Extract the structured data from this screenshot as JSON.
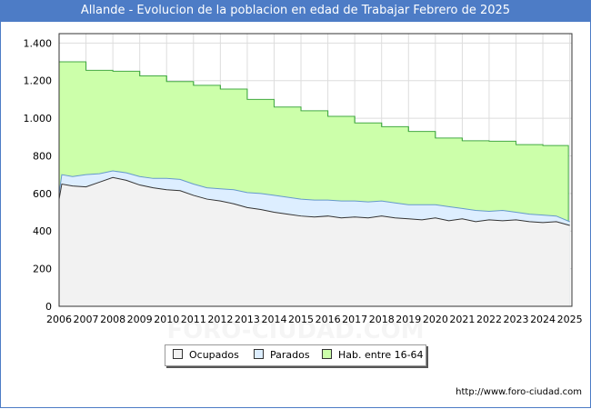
{
  "title": "Allande - Evolucion de la poblacion en edad de Trabajar Febrero de 2025",
  "footer_url": "http://www.foro-ciudad.com",
  "watermark": "FORO-CIUDAD.COM",
  "chart_data": {
    "type": "area",
    "title": "Allande - Evolucion de la poblacion en edad de Trabajar Febrero de 2025",
    "xlabel": "",
    "ylabel": "",
    "x_ticks": [
      "2006",
      "2007",
      "2008",
      "2009",
      "2010",
      "2011",
      "2012",
      "2013",
      "2014",
      "2015",
      "2016",
      "2017",
      "2018",
      "2019",
      "2020",
      "2021",
      "2022",
      "2023",
      "2024",
      "2025"
    ],
    "y_ticks": [
      0,
      200,
      400,
      600,
      800,
      1000,
      1200,
      1400
    ],
    "y_tick_labels": [
      "0",
      "200",
      "400",
      "600",
      "800",
      "1.000",
      "1.200",
      "1.400"
    ],
    "ylim": [
      0,
      1450
    ],
    "xlim": [
      2006,
      2025.08
    ],
    "grid": true,
    "legend_position": "bottom",
    "series": [
      {
        "name": "Hab. entre 16-64",
        "color": "#ccffaa",
        "line_color": "#44aa44",
        "step_values": [
          {
            "year": 2006,
            "value": 1300
          },
          {
            "year": 2007,
            "value": 1255
          },
          {
            "year": 2008,
            "value": 1250
          },
          {
            "year": 2009,
            "value": 1225
          },
          {
            "year": 2010,
            "value": 1195
          },
          {
            "year": 2011,
            "value": 1175
          },
          {
            "year": 2012,
            "value": 1155
          },
          {
            "year": 2013,
            "value": 1100
          },
          {
            "year": 2014,
            "value": 1060
          },
          {
            "year": 2015,
            "value": 1040
          },
          {
            "year": 2016,
            "value": 1010
          },
          {
            "year": 2017,
            "value": 975
          },
          {
            "year": 2018,
            "value": 955
          },
          {
            "year": 2019,
            "value": 930
          },
          {
            "year": 2020,
            "value": 895
          },
          {
            "year": 2021,
            "value": 880
          },
          {
            "year": 2022,
            "value": 878
          },
          {
            "year": 2023,
            "value": 860
          },
          {
            "year": 2024,
            "value": 855
          }
        ]
      },
      {
        "name": "Parados",
        "color": "#ddeeff",
        "line_color": "#6699cc",
        "x": [
          2006.0,
          2006.1,
          2006.5,
          2007.0,
          2007.5,
          2008.0,
          2008.5,
          2009.0,
          2009.5,
          2010.0,
          2010.5,
          2011.0,
          2011.5,
          2012.0,
          2012.5,
          2013.0,
          2013.5,
          2014.0,
          2014.5,
          2015.0,
          2015.5,
          2016.0,
          2016.5,
          2017.0,
          2017.5,
          2018.0,
          2018.5,
          2019.0,
          2019.5,
          2020.0,
          2020.5,
          2021.0,
          2021.5,
          2022.0,
          2022.5,
          2023.0,
          2023.5,
          2024.0,
          2024.5,
          2025.0
        ],
        "values": [
          600,
          700,
          690,
          700,
          705,
          720,
          710,
          690,
          680,
          680,
          675,
          650,
          630,
          625,
          620,
          605,
          600,
          590,
          580,
          570,
          565,
          565,
          560,
          560,
          555,
          560,
          550,
          540,
          540,
          540,
          530,
          520,
          510,
          505,
          510,
          500,
          490,
          485,
          480,
          450
        ]
      },
      {
        "name": "Ocupados",
        "color": "#f2f2f2",
        "line_color": "#333333",
        "x": [
          2006.0,
          2006.1,
          2006.5,
          2007.0,
          2007.5,
          2008.0,
          2008.5,
          2009.0,
          2009.5,
          2010.0,
          2010.5,
          2011.0,
          2011.5,
          2012.0,
          2012.5,
          2013.0,
          2013.5,
          2014.0,
          2014.5,
          2015.0,
          2015.5,
          2016.0,
          2016.5,
          2017.0,
          2017.5,
          2018.0,
          2018.5,
          2019.0,
          2019.5,
          2020.0,
          2020.5,
          2021.0,
          2021.5,
          2022.0,
          2022.5,
          2023.0,
          2023.5,
          2024.0,
          2024.5,
          2025.0
        ],
        "values": [
          570,
          650,
          640,
          635,
          660,
          685,
          670,
          645,
          630,
          620,
          615,
          590,
          570,
          560,
          545,
          525,
          515,
          500,
          490,
          480,
          475,
          480,
          470,
          475,
          470,
          480,
          470,
          465,
          460,
          470,
          455,
          465,
          450,
          460,
          455,
          460,
          450,
          445,
          450,
          430
        ]
      }
    ]
  }
}
